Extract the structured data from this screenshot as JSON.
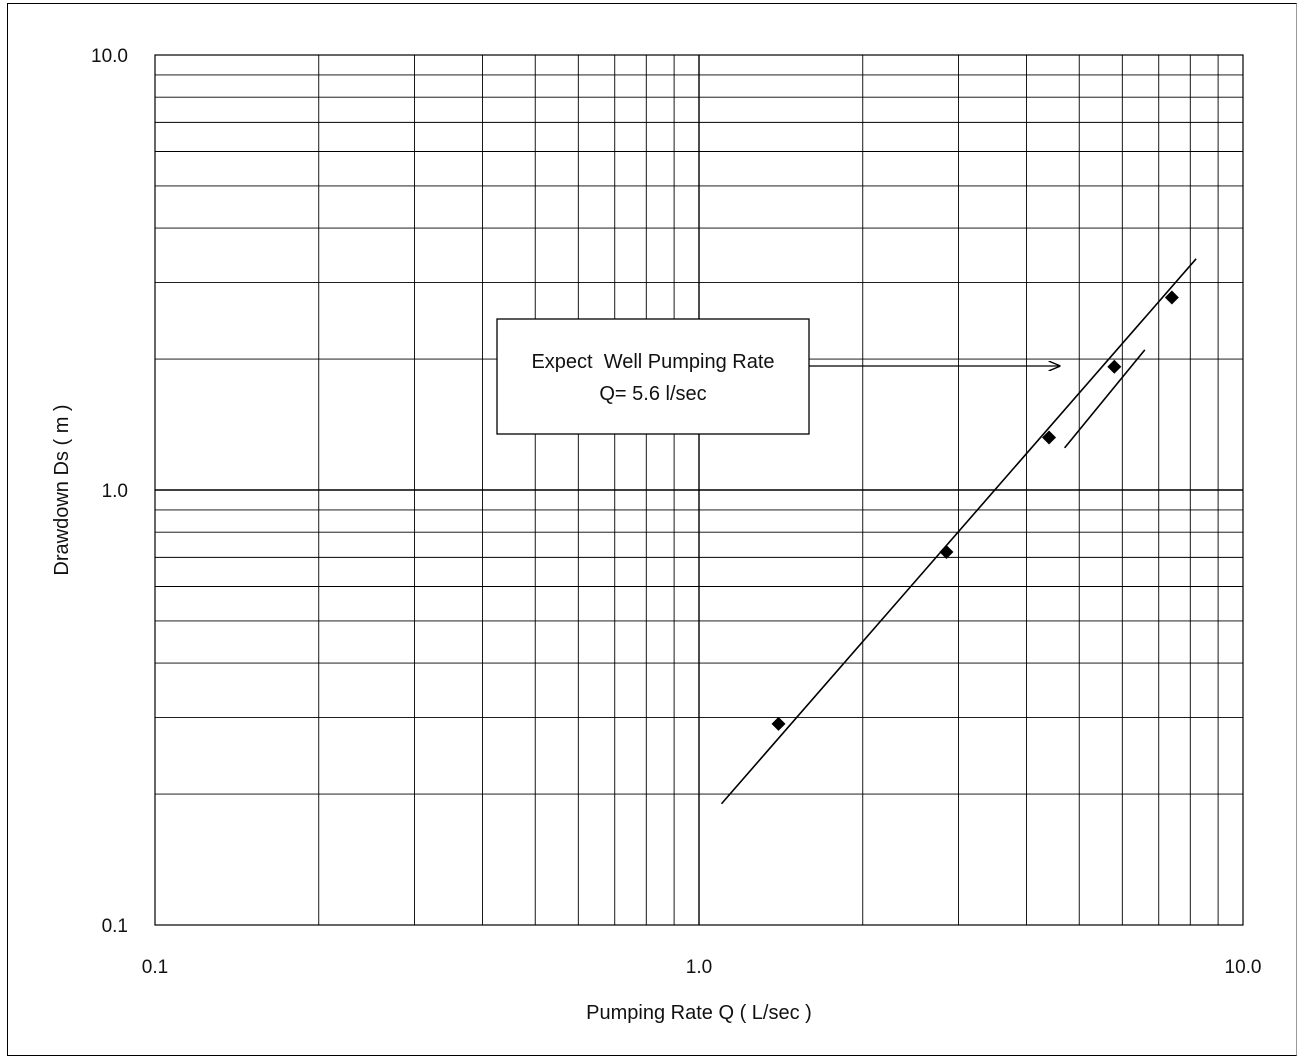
{
  "chart_data": {
    "type": "scatter",
    "title": "",
    "xlabel": "Pumping Rate Q ( L/sec )",
    "ylabel": "Drawdown Ds ( m )",
    "xscale": "log",
    "yscale": "log",
    "xlim": [
      0.1,
      10.0
    ],
    "ylim": [
      0.1,
      10.0
    ],
    "grid": true,
    "x_tick_labels": [
      "0.1",
      "1.0",
      "10.0"
    ],
    "y_tick_labels": [
      "0.1",
      "1.0",
      "10.0"
    ],
    "series": [
      {
        "type": "scatter",
        "marker": "diamond",
        "color": "#000000",
        "points": [
          {
            "x": 1.4,
            "y": 0.29
          },
          {
            "x": 2.85,
            "y": 0.72
          },
          {
            "x": 4.4,
            "y": 1.32
          },
          {
            "x": 5.8,
            "y": 1.92
          },
          {
            "x": 7.4,
            "y": 2.77
          }
        ]
      },
      {
        "type": "line",
        "color": "#000000",
        "points": [
          {
            "x": 1.1,
            "y": 0.19
          },
          {
            "x": 8.2,
            "y": 3.4
          }
        ]
      },
      {
        "type": "line",
        "color": "#000000",
        "points": [
          {
            "x": 4.7,
            "y": 1.25
          },
          {
            "x": 6.6,
            "y": 2.1
          }
        ]
      }
    ],
    "annotation": {
      "lines": [
        "Expect  Well Pumping Rate",
        "Q= 5.6 l/sec"
      ],
      "arrow_to": {
        "x": 4.6,
        "y": 1.9
      }
    }
  }
}
